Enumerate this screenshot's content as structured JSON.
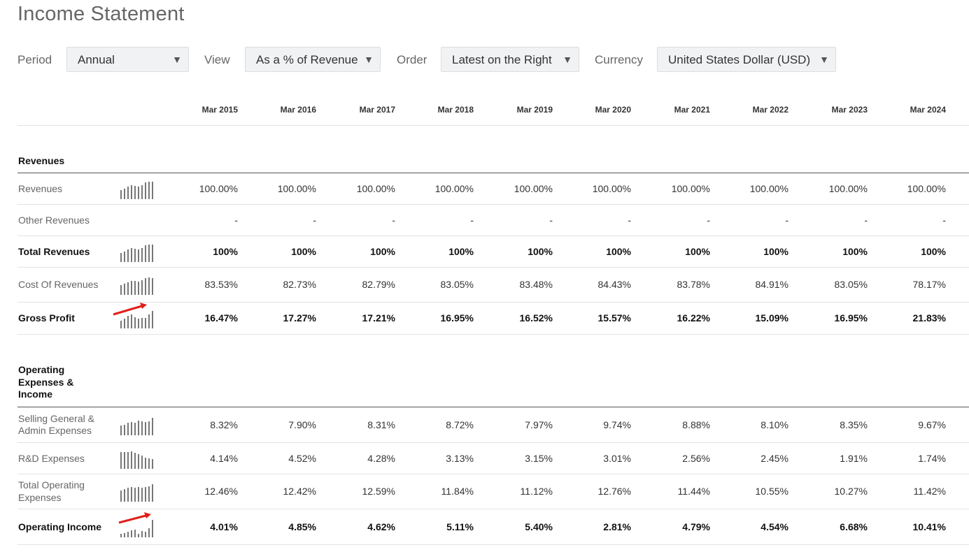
{
  "page": {
    "title": "Income Statement"
  },
  "filters": [
    {
      "label": "Period",
      "value": "Annual"
    },
    {
      "label": "View",
      "value": "As a % of Revenue"
    },
    {
      "label": "Order",
      "value": "Latest on the Right"
    },
    {
      "label": "Currency",
      "value": "United States Dollar (USD)"
    }
  ],
  "columns": [
    "Mar 2015",
    "Mar 2016",
    "Mar 2017",
    "Mar 2018",
    "Mar 2019",
    "Mar 2020",
    "Mar 2021",
    "Mar 2022",
    "Mar 2023",
    "Mar 2024"
  ],
  "sections": [
    {
      "title": "Revenues",
      "rows": [
        {
          "label": "Revenues",
          "bold": false,
          "spark": [
            0.5,
            0.6,
            0.7,
            0.78,
            0.76,
            0.73,
            0.8,
            0.95,
            1.0,
            1.0
          ],
          "values": [
            "100.00%",
            "100.00%",
            "100.00%",
            "100.00%",
            "100.00%",
            "100.00%",
            "100.00%",
            "100.00%",
            "100.00%",
            "100.00%"
          ]
        },
        {
          "label": "Other Revenues",
          "bold": false,
          "spark": null,
          "values": [
            "-",
            "-",
            "-",
            "-",
            "-",
            "-",
            "-",
            "-",
            "-",
            "-"
          ]
        },
        {
          "label": "Total Revenues",
          "bold": true,
          "spark": [
            0.5,
            0.6,
            0.7,
            0.78,
            0.76,
            0.73,
            0.8,
            0.95,
            1.0,
            1.0
          ],
          "values": [
            "100%",
            "100%",
            "100%",
            "100%",
            "100%",
            "100%",
            "100%",
            "100%",
            "100%",
            "100%"
          ]
        },
        {
          "label": "Cost Of Revenues",
          "bold": false,
          "spark": [
            0.55,
            0.62,
            0.72,
            0.8,
            0.78,
            0.75,
            0.82,
            0.97,
            1.0,
            0.96
          ],
          "values": [
            "83.53%",
            "82.73%",
            "82.79%",
            "83.05%",
            "83.48%",
            "84.43%",
            "83.78%",
            "84.91%",
            "83.05%",
            "78.17%"
          ]
        },
        {
          "label": "Gross Profit",
          "bold": true,
          "spark": [
            0.45,
            0.55,
            0.7,
            0.78,
            0.65,
            0.55,
            0.6,
            0.6,
            0.8,
            1.0
          ],
          "values": [
            "16.47%",
            "17.27%",
            "17.21%",
            "16.95%",
            "16.52%",
            "15.57%",
            "16.22%",
            "15.09%",
            "16.95%",
            "21.83%"
          ],
          "arrow": true
        }
      ]
    },
    {
      "title": "Operating Expenses & Income",
      "rows": [
        {
          "label": "Selling General & Admin Expenses",
          "bold": false,
          "spark": [
            0.55,
            0.6,
            0.7,
            0.75,
            0.7,
            0.85,
            0.8,
            0.75,
            0.78,
            1.0
          ],
          "values": [
            "8.32%",
            "7.90%",
            "8.31%",
            "8.72%",
            "7.97%",
            "9.74%",
            "8.88%",
            "8.10%",
            "8.35%",
            "9.67%"
          ]
        },
        {
          "label": "R&D Expenses",
          "bold": false,
          "spark": [
            0.95,
            0.95,
            0.95,
            1.0,
            0.9,
            0.85,
            0.75,
            0.65,
            0.6,
            0.55
          ],
          "values": [
            "4.14%",
            "4.52%",
            "4.28%",
            "3.13%",
            "3.15%",
            "3.01%",
            "2.56%",
            "2.45%",
            "1.91%",
            "1.74%"
          ]
        },
        {
          "label": "Total Operating Expenses",
          "bold": false,
          "spark": [
            0.65,
            0.72,
            0.8,
            0.82,
            0.78,
            0.85,
            0.8,
            0.82,
            0.88,
            1.0
          ],
          "values": [
            "12.46%",
            "12.42%",
            "12.59%",
            "11.84%",
            "11.12%",
            "12.76%",
            "11.44%",
            "10.55%",
            "10.27%",
            "11.42%"
          ]
        },
        {
          "label": "Operating Income",
          "bold": true,
          "spark": [
            0.2,
            0.25,
            0.3,
            0.4,
            0.42,
            0.2,
            0.35,
            0.33,
            0.5,
            1.0
          ],
          "values": [
            "4.01%",
            "4.85%",
            "4.62%",
            "5.11%",
            "5.40%",
            "2.81%",
            "4.79%",
            "4.54%",
            "6.68%",
            "10.41%"
          ],
          "arrow": true
        }
      ]
    }
  ],
  "colors": {
    "sparkline": "#777777",
    "annotation_arrow": "#e0201b",
    "select_bg": "#f1f2f4"
  }
}
